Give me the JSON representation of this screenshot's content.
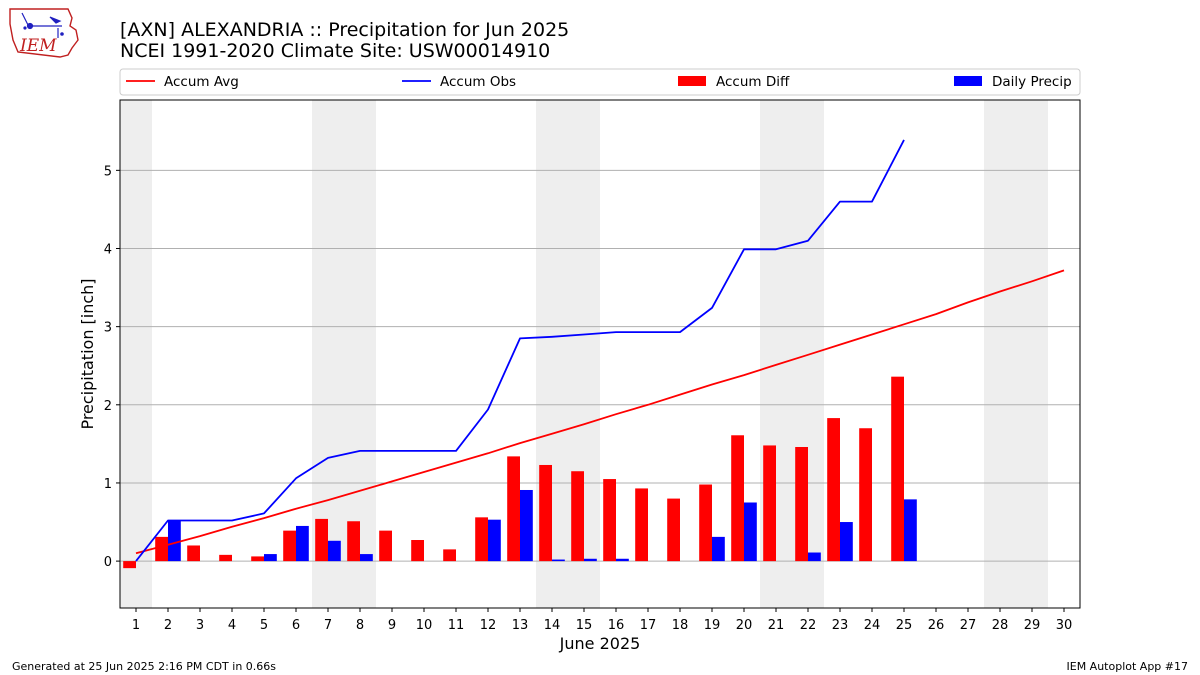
{
  "header": {
    "title_line1": "[AXN] ALEXANDRIA :: Precipitation for Jun 2025",
    "title_line2": "NCEI 1991-2020 Climate Site: USW00014910",
    "logo_text": "IEM"
  },
  "footer": {
    "left": "Generated at 25 Jun 2025 2:16 PM CDT in 0.66s",
    "right": "IEM Autoplot App #17"
  },
  "colors": {
    "accum_avg": "#ff0000",
    "accum_obs": "#0000ff",
    "accum_diff": "#ff0000",
    "daily_precip": "#0000ff",
    "weekend_shade": "#eeeeee",
    "grid": "#b0b0b0"
  },
  "chart_data": {
    "type": "bar",
    "xlabel": "June 2025",
    "ylabel": "Precipitation [inch]",
    "xlim": [
      0.5,
      30.5
    ],
    "ylim": [
      -0.6,
      5.9
    ],
    "yticks": [
      0,
      1,
      2,
      3,
      4,
      5
    ],
    "xticks": [
      1,
      2,
      3,
      4,
      5,
      6,
      7,
      8,
      9,
      10,
      11,
      12,
      13,
      14,
      15,
      16,
      17,
      18,
      19,
      20,
      21,
      22,
      23,
      24,
      25,
      26,
      27,
      28,
      29,
      30
    ],
    "grid": "horizontal",
    "legend_position": "top",
    "weekend_days": [
      1,
      7,
      8,
      14,
      15,
      21,
      22,
      28,
      29
    ],
    "legend": [
      {
        "label": "Accum Avg",
        "kind": "line",
        "color": "#ff0000"
      },
      {
        "label": "Accum Obs",
        "kind": "line",
        "color": "#0000ff"
      },
      {
        "label": "Accum Diff",
        "kind": "bar",
        "color": "#ff0000"
      },
      {
        "label": "Daily Precip",
        "kind": "bar",
        "color": "#0000ff"
      }
    ],
    "series": [
      {
        "name": "Accum Avg",
        "type": "line",
        "x": [
          1,
          2,
          3,
          4,
          5,
          6,
          7,
          8,
          9,
          10,
          11,
          12,
          13,
          14,
          15,
          16,
          17,
          18,
          19,
          20,
          21,
          22,
          23,
          24,
          25,
          26,
          27,
          28,
          29,
          30
        ],
        "values": [
          0.1,
          0.21,
          0.32,
          0.44,
          0.55,
          0.67,
          0.78,
          0.9,
          1.02,
          1.14,
          1.26,
          1.38,
          1.51,
          1.63,
          1.75,
          1.88,
          2.0,
          2.13,
          2.26,
          2.38,
          2.51,
          2.64,
          2.77,
          2.9,
          3.03,
          3.16,
          3.31,
          3.45,
          3.58,
          3.72
        ]
      },
      {
        "name": "Accum Obs",
        "type": "line",
        "x": [
          1,
          2,
          3,
          4,
          5,
          6,
          7,
          8,
          9,
          10,
          11,
          12,
          13,
          14,
          15,
          16,
          17,
          18,
          19,
          20,
          21,
          22,
          23,
          24,
          25
        ],
        "values": [
          0.0,
          0.52,
          0.52,
          0.52,
          0.61,
          1.06,
          1.32,
          1.41,
          1.41,
          1.41,
          1.41,
          1.94,
          2.85,
          2.87,
          2.9,
          2.93,
          2.93,
          2.93,
          3.24,
          3.99,
          3.99,
          4.1,
          4.6,
          4.6,
          5.39
        ]
      },
      {
        "name": "Accum Diff",
        "type": "bar",
        "x": [
          1,
          2,
          3,
          4,
          5,
          6,
          7,
          8,
          9,
          10,
          11,
          12,
          13,
          14,
          15,
          16,
          17,
          18,
          19,
          20,
          21,
          22,
          23,
          24,
          25
        ],
        "values": [
          -0.09,
          0.31,
          0.2,
          0.08,
          0.06,
          0.39,
          0.54,
          0.51,
          0.39,
          0.27,
          0.15,
          0.56,
          1.34,
          1.23,
          1.15,
          1.05,
          0.93,
          0.8,
          0.98,
          1.61,
          1.48,
          1.46,
          1.83,
          1.7,
          2.36
        ]
      },
      {
        "name": "Daily Precip",
        "type": "bar",
        "x": [
          1,
          2,
          3,
          4,
          5,
          6,
          7,
          8,
          9,
          10,
          11,
          12,
          13,
          14,
          15,
          16,
          17,
          18,
          19,
          20,
          21,
          22,
          23,
          24,
          25
        ],
        "values": [
          0.0,
          0.52,
          0.0,
          0.0,
          0.09,
          0.45,
          0.26,
          0.09,
          0.0,
          0.0,
          0.0,
          0.53,
          0.91,
          0.02,
          0.03,
          0.03,
          0.0,
          0.0,
          0.31,
          0.75,
          0.0,
          0.11,
          0.5,
          0.0,
          0.79
        ]
      }
    ]
  }
}
